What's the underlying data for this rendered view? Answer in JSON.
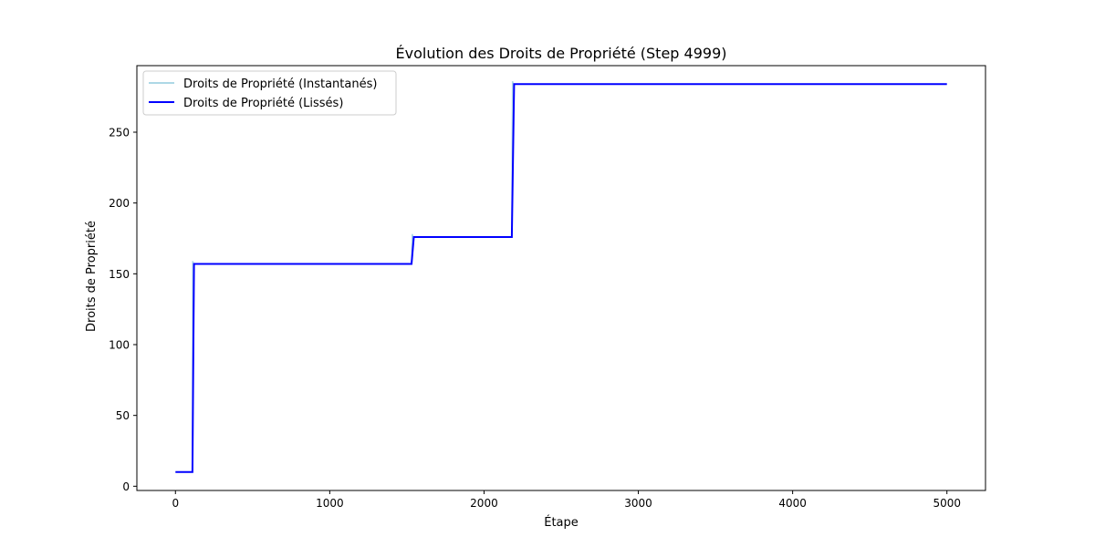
{
  "chart_data": {
    "type": "line",
    "title": "Évolution des Droits de Propriété (Step 4999)",
    "xlabel": "Étape",
    "ylabel": "Droits de Propriété",
    "xlim": [
      -250,
      5250
    ],
    "ylim": [
      -3,
      297
    ],
    "xticks": [
      0,
      1000,
      2000,
      3000,
      4000,
      5000
    ],
    "yticks": [
      0,
      50,
      100,
      150,
      200,
      250
    ],
    "grid": false,
    "legend_position": "upper-left",
    "series": [
      {
        "name": "Droits de Propriété (Instantanés)",
        "color": "#add8e6",
        "x": [
          0,
          100,
          110,
          112,
          118,
          125,
          1530,
          1535,
          1540,
          1545,
          2180,
          2185,
          2190,
          2195,
          5000
        ],
        "y": [
          10,
          10,
          10,
          159,
          157,
          157,
          157,
          178,
          176,
          176,
          176,
          286,
          284,
          284,
          284
        ]
      },
      {
        "name": "Droits de Propriété (Lissés)",
        "color": "#0000ff",
        "x": [
          0,
          110,
          120,
          1530,
          1545,
          2180,
          2195,
          5000
        ],
        "y": [
          10,
          10,
          157,
          157,
          176,
          176,
          284,
          284
        ]
      }
    ]
  }
}
